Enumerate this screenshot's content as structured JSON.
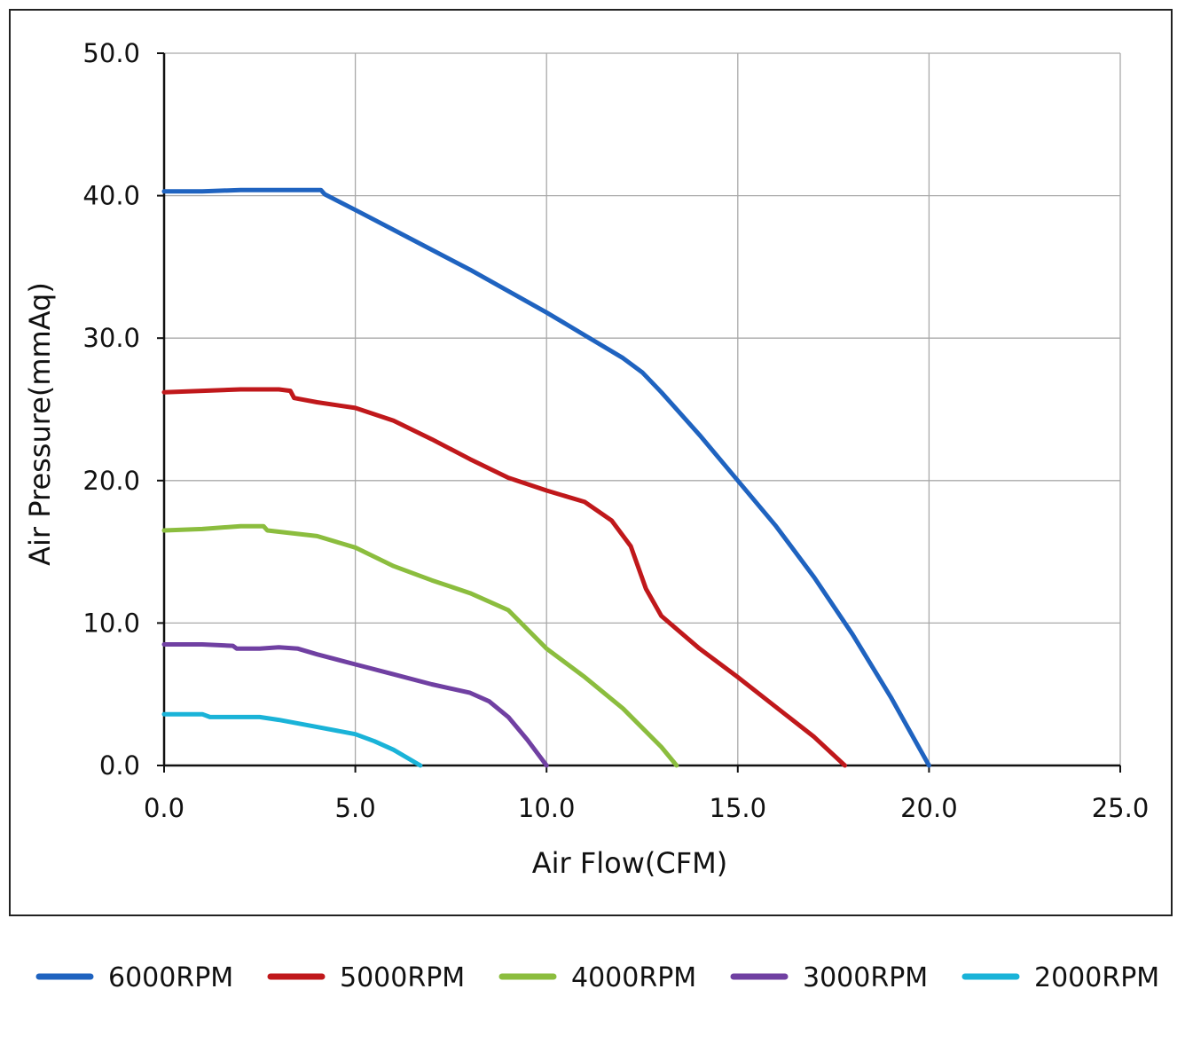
{
  "chart_data": {
    "type": "line",
    "title": "",
    "xlabel": "Air Flow(CFM)",
    "ylabel": "Air Pressure(mmAq)",
    "xlim": [
      0,
      25
    ],
    "ylim": [
      0,
      50
    ],
    "x_ticks": [
      "0.0",
      "5.0",
      "10.0",
      "15.0",
      "20.0",
      "25.0"
    ],
    "y_ticks": [
      "0.0",
      "10.0",
      "20.0",
      "30.0",
      "40.0",
      "50.0"
    ],
    "grid": true,
    "legend_position": "bottom",
    "series": [
      {
        "name": "6000RPM",
        "color": "#1f63c0",
        "points": [
          [
            0,
            40.3
          ],
          [
            1,
            40.3
          ],
          [
            2,
            40.4
          ],
          [
            3,
            40.4
          ],
          [
            4.1,
            40.4
          ],
          [
            4.2,
            40.1
          ],
          [
            5,
            39.0
          ],
          [
            6,
            37.6
          ],
          [
            7,
            36.2
          ],
          [
            8,
            34.8
          ],
          [
            9,
            33.3
          ],
          [
            10,
            31.8
          ],
          [
            10.5,
            31.0
          ],
          [
            11,
            30.2
          ],
          [
            12,
            28.6
          ],
          [
            12.5,
            27.6
          ],
          [
            13,
            26.2
          ],
          [
            14,
            23.2
          ],
          [
            15,
            20.0
          ],
          [
            16,
            16.8
          ],
          [
            17,
            13.2
          ],
          [
            18,
            9.2
          ],
          [
            19,
            4.8
          ],
          [
            20,
            0
          ]
        ]
      },
      {
        "name": "5000RPM",
        "color": "#c0181b",
        "points": [
          [
            0,
            26.2
          ],
          [
            1,
            26.3
          ],
          [
            2,
            26.4
          ],
          [
            3,
            26.4
          ],
          [
            3.3,
            26.3
          ],
          [
            3.4,
            25.8
          ],
          [
            4,
            25.5
          ],
          [
            5,
            25.1
          ],
          [
            6,
            24.2
          ],
          [
            7,
            22.9
          ],
          [
            8,
            21.5
          ],
          [
            9,
            20.2
          ],
          [
            10,
            19.3
          ],
          [
            11,
            18.5
          ],
          [
            11.7,
            17.2
          ],
          [
            12.2,
            15.4
          ],
          [
            12.6,
            12.4
          ],
          [
            13,
            10.5
          ],
          [
            14,
            8.2
          ],
          [
            15,
            6.2
          ],
          [
            16,
            4.1
          ],
          [
            17,
            2.0
          ],
          [
            17.8,
            0
          ]
        ]
      },
      {
        "name": "4000RPM",
        "color": "#8bbd3e",
        "points": [
          [
            0,
            16.5
          ],
          [
            1,
            16.6
          ],
          [
            2,
            16.8
          ],
          [
            2.6,
            16.8
          ],
          [
            2.7,
            16.5
          ],
          [
            4,
            16.1
          ],
          [
            5,
            15.3
          ],
          [
            6,
            14.0
          ],
          [
            7,
            13.0
          ],
          [
            8,
            12.1
          ],
          [
            9,
            10.9
          ],
          [
            10,
            8.2
          ],
          [
            11,
            6.2
          ],
          [
            12,
            4.0
          ],
          [
            13,
            1.3
          ],
          [
            13.4,
            0
          ]
        ]
      },
      {
        "name": "3000RPM",
        "color": "#7040a2",
        "points": [
          [
            0,
            8.5
          ],
          [
            1,
            8.5
          ],
          [
            1.8,
            8.4
          ],
          [
            1.9,
            8.2
          ],
          [
            2.5,
            8.2
          ],
          [
            3,
            8.3
          ],
          [
            3.5,
            8.2
          ],
          [
            4,
            7.8
          ],
          [
            5,
            7.1
          ],
          [
            6,
            6.4
          ],
          [
            7,
            5.7
          ],
          [
            8,
            5.1
          ],
          [
            8.5,
            4.5
          ],
          [
            9,
            3.4
          ],
          [
            9.5,
            1.8
          ],
          [
            10,
            0
          ]
        ]
      },
      {
        "name": "2000RPM",
        "color": "#1ab3d8",
        "points": [
          [
            0,
            3.6
          ],
          [
            1,
            3.6
          ],
          [
            1.2,
            3.4
          ],
          [
            2,
            3.4
          ],
          [
            2.5,
            3.4
          ],
          [
            3,
            3.2
          ],
          [
            4,
            2.7
          ],
          [
            5,
            2.2
          ],
          [
            5.5,
            1.7
          ],
          [
            6,
            1.1
          ],
          [
            6.7,
            0
          ]
        ]
      }
    ]
  }
}
